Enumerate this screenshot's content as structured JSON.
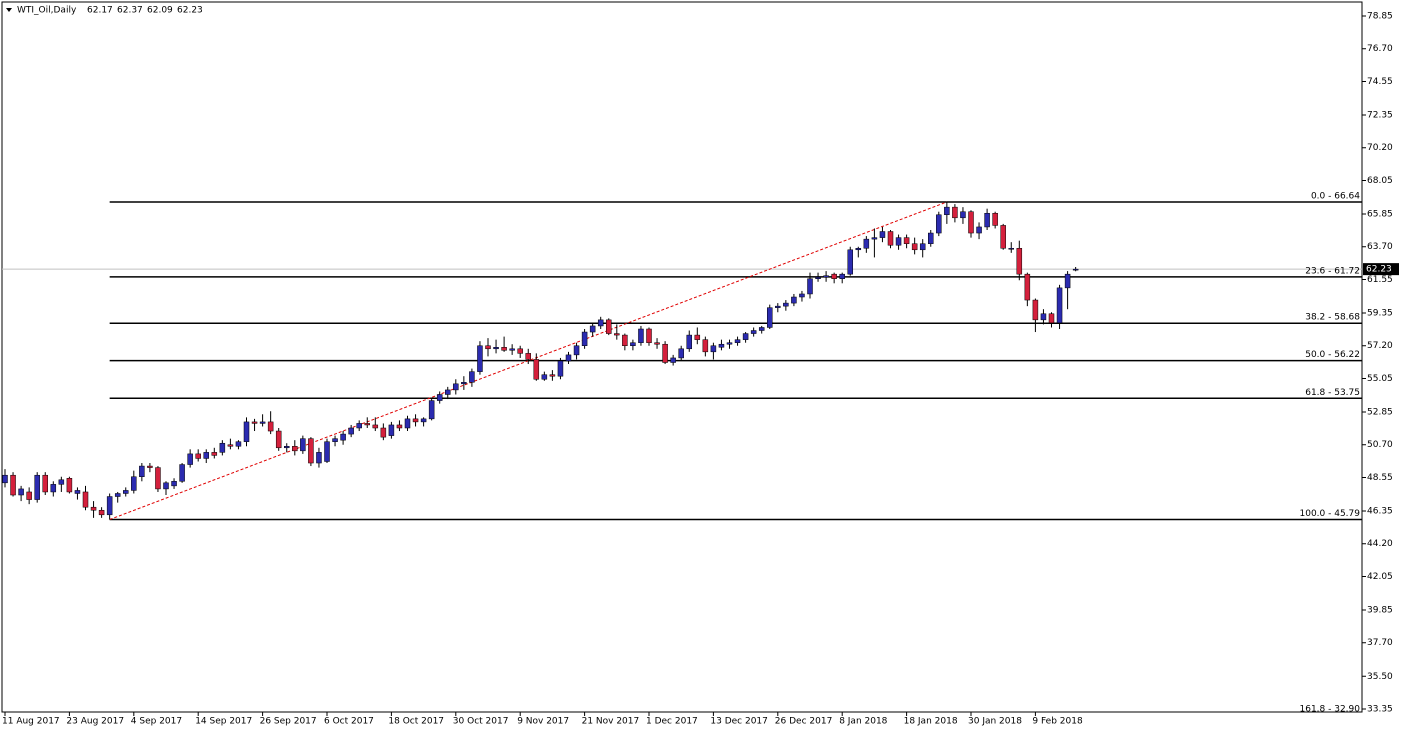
{
  "chart_data": {
    "type": "candlestick",
    "title": "WTI_Oil,Daily",
    "up_color": "#2b2bb0",
    "down_color": "#d4203c",
    "wick_color": "#000000",
    "trendline_color": "#e00000",
    "fib_color": "#000000",
    "ylim": [
      33.35,
      78.85
    ],
    "yticks": [
      78.85,
      {
        "value": 76.7,
        "label": "76.70"
      },
      74.55,
      72.35,
      {
        "value": 70.2,
        "label": "70.20"
      },
      68.05,
      65.85,
      {
        "value": 63.7,
        "label": "63.70"
      },
      61.55,
      59.35,
      {
        "value": 57.2,
        "label": "57.20"
      },
      55.05,
      52.85,
      {
        "value": 50.7,
        "label": "50.70"
      },
      48.55,
      46.35,
      {
        "value": 44.2,
        "label": "44.20"
      },
      42.05,
      39.85,
      {
        "value": 37.7,
        "label": "37.70"
      },
      {
        "value": 35.5,
        "label": "35.50"
      },
      33.35
    ],
    "fib_levels": [
      {
        "value": 66.64,
        "label": "0.0 - 66.64"
      },
      {
        "value": 61.72,
        "label": "23.6 - 61.72"
      },
      {
        "value": 58.68,
        "label": "38.2 - 58.68"
      },
      {
        "value": 56.22,
        "label": "50.0 - 56.22"
      },
      {
        "value": 53.75,
        "label": "61.8 - 53.75"
      },
      {
        "value": 45.79,
        "label": "100.0 - 45.79"
      },
      {
        "value": 32.9,
        "label": "161.8 - 32.90"
      }
    ],
    "categories": [
      "11 Aug 2017",
      null,
      null,
      null,
      null,
      null,
      null,
      null,
      "23 Aug 2017",
      null,
      null,
      null,
      null,
      null,
      null,
      null,
      "4 Sep 2017",
      null,
      null,
      null,
      null,
      null,
      null,
      null,
      "14 Sep 2017",
      null,
      null,
      null,
      null,
      null,
      null,
      null,
      "26 Sep 2017",
      null,
      null,
      null,
      null,
      null,
      null,
      null,
      "6 Oct 2017",
      null,
      null,
      null,
      null,
      null,
      null,
      null,
      "18 Oct 2017",
      null,
      null,
      null,
      null,
      null,
      null,
      null,
      "30 Oct 2017",
      null,
      null,
      null,
      null,
      null,
      null,
      null,
      "9 Nov 2017",
      null,
      null,
      null,
      null,
      null,
      null,
      null,
      "21 Nov 2017",
      null,
      null,
      null,
      null,
      null,
      null,
      null,
      "1 Dec 2017",
      null,
      null,
      null,
      null,
      null,
      null,
      null,
      "13 Dec 2017",
      null,
      null,
      null,
      null,
      null,
      null,
      null,
      "26 Dec 2017",
      null,
      null,
      null,
      null,
      null,
      null,
      null,
      "8 Jan 2018",
      null,
      null,
      null,
      null,
      null,
      null,
      null,
      "18 Jan 2018",
      null,
      null,
      null,
      null,
      null,
      null,
      null,
      "30 Jan 2018",
      null,
      null,
      null,
      null,
      null,
      null,
      null,
      "9 Feb 2018",
      null,
      null,
      null,
      null,
      null
    ],
    "open": [
      48.2,
      48.7,
      47.4,
      47.6,
      47.1,
      48.7,
      47.6,
      48.1,
      48.5,
      47.5,
      47.6,
      46.6,
      46.4,
      46.1,
      47.3,
      47.5,
      47.7,
      48.6,
      49.3,
      49.2,
      47.8,
      48.0,
      48.3,
      49.4,
      50.1,
      49.8,
      50.2,
      50.2,
      50.7,
      50.6,
      50.9,
      52.2,
      52.1,
      52.2,
      51.6,
      50.5,
      50.6,
      50.3,
      51.1,
      49.5,
      49.6,
      50.9,
      51.0,
      51.4,
      51.8,
      52.1,
      52.0,
      51.8,
      51.3,
      52.0,
      51.8,
      52.4,
      52.2,
      52.4,
      53.6,
      54.0,
      54.3,
      54.7,
      54.8,
      55.5,
      57.2,
      57.0,
      57.1,
      56.9,
      57.0,
      56.7,
      56.3,
      55.0,
      55.3,
      55.2,
      56.2,
      56.6,
      57.2,
      58.1,
      58.5,
      58.9,
      58.0,
      57.9,
      57.2,
      57.4,
      58.3,
      57.4,
      57.3,
      56.1,
      56.4,
      57.0,
      57.9,
      57.6,
      56.8,
      57.1,
      57.3,
      57.4,
      57.6,
      58.0,
      58.2,
      58.4,
      59.7,
      59.8,
      60.0,
      60.4,
      60.6,
      61.6,
      61.7,
      61.9,
      61.6,
      61.9,
      63.5,
      63.6,
      64.2,
      64.3,
      64.7,
      63.8,
      64.3,
      63.9,
      63.5,
      63.9,
      64.6,
      65.8,
      66.3,
      65.6,
      66.0,
      64.6,
      65.0,
      65.9,
      65.1,
      63.6,
      63.6,
      61.9,
      60.2,
      58.9,
      59.3,
      58.7,
      61.0,
      62.17
    ],
    "high": [
      49.1,
      48.9,
      48.0,
      47.9,
      48.9,
      48.9,
      48.3,
      48.6,
      48.6,
      47.9,
      48.0,
      47.0,
      46.6,
      47.5,
      47.6,
      47.9,
      49.0,
      49.5,
      49.5,
      49.3,
      48.3,
      48.5,
      49.5,
      50.4,
      50.4,
      50.4,
      50.5,
      51.0,
      51.1,
      51.0,
      52.5,
      52.4,
      52.7,
      52.9,
      51.8,
      50.8,
      51.0,
      51.3,
      51.2,
      50.5,
      51.1,
      51.3,
      51.6,
      52.0,
      52.3,
      52.5,
      52.5,
      52.1,
      52.2,
      52.3,
      52.6,
      52.7,
      52.5,
      53.8,
      54.2,
      54.5,
      55.0,
      55.2,
      55.7,
      57.5,
      57.7,
      57.6,
      57.8,
      57.3,
      57.2,
      57.0,
      56.7,
      55.5,
      55.6,
      56.4,
      56.8,
      57.4,
      58.3,
      58.7,
      59.1,
      59.0,
      58.6,
      58.0,
      57.6,
      58.5,
      58.4,
      57.7,
      57.5,
      56.6,
      57.2,
      58.2,
      58.4,
      57.8,
      57.4,
      57.6,
      57.6,
      57.8,
      58.1,
      58.4,
      58.5,
      59.9,
      60.0,
      60.2,
      60.6,
      60.8,
      62.0,
      62.0,
      62.1,
      62.0,
      62.0,
      63.7,
      63.7,
      64.4,
      64.9,
      65.0,
      64.8,
      64.5,
      64.5,
      64.3,
      64.2,
      64.8,
      66.0,
      66.64,
      66.5,
      66.3,
      66.1,
      65.3,
      66.2,
      66.0,
      65.2,
      64.0,
      64.1,
      62.0,
      60.3,
      59.6,
      59.4,
      61.2,
      62.1,
      62.37
    ],
    "low": [
      47.9,
      47.3,
      47.0,
      46.8,
      46.9,
      47.4,
      47.3,
      47.6,
      47.5,
      47.1,
      46.4,
      45.9,
      45.9,
      45.79,
      46.9,
      47.3,
      47.5,
      48.3,
      48.9,
      47.6,
      47.4,
      47.8,
      48.2,
      49.2,
      49.6,
      49.5,
      49.8,
      50.0,
      50.4,
      50.4,
      50.6,
      51.6,
      51.9,
      51.4,
      50.3,
      50.2,
      50.0,
      50.1,
      49.3,
      49.2,
      49.5,
      50.6,
      50.7,
      51.2,
      51.6,
      51.8,
      51.6,
      51.0,
      51.1,
      51.6,
      51.6,
      51.9,
      51.9,
      52.3,
      53.4,
      53.7,
      54.0,
      54.3,
      54.5,
      55.3,
      56.5,
      56.7,
      56.8,
      56.6,
      56.4,
      56.0,
      54.9,
      54.9,
      54.9,
      55.0,
      56.0,
      56.3,
      57.0,
      57.8,
      58.3,
      57.9,
      57.6,
      56.9,
      56.9,
      57.2,
      57.2,
      57.0,
      56.0,
      55.9,
      56.2,
      56.8,
      57.3,
      56.5,
      56.3,
      56.9,
      57.0,
      57.2,
      57.4,
      57.8,
      58.0,
      58.3,
      59.4,
      59.5,
      59.8,
      60.1,
      60.3,
      61.4,
      61.4,
      61.3,
      61.3,
      61.8,
      63.0,
      63.3,
      63.0,
      64.0,
      63.6,
      63.5,
      63.6,
      63.2,
      63.0,
      63.7,
      64.4,
      65.2,
      65.3,
      65.2,
      64.3,
      64.2,
      64.8,
      64.9,
      63.5,
      63.3,
      61.5,
      59.8,
      58.1,
      58.6,
      58.4,
      58.3,
      59.6,
      62.09
    ],
    "close": [
      48.7,
      47.4,
      47.8,
      47.1,
      48.7,
      47.6,
      48.1,
      48.4,
      47.6,
      47.7,
      46.6,
      46.4,
      46.1,
      47.3,
      47.5,
      47.7,
      48.6,
      49.3,
      49.2,
      47.8,
      48.2,
      48.3,
      49.4,
      50.1,
      49.8,
      50.2,
      50.0,
      50.8,
      50.6,
      50.9,
      52.2,
      52.1,
      52.2,
      51.6,
      50.5,
      50.6,
      50.3,
      51.1,
      49.5,
      50.2,
      50.9,
      51.1,
      51.4,
      51.8,
      52.1,
      52.0,
      51.8,
      51.2,
      52.0,
      51.8,
      52.4,
      52.2,
      52.4,
      53.6,
      54.0,
      54.3,
      54.7,
      54.8,
      55.5,
      57.2,
      57.0,
      57.1,
      56.9,
      57.0,
      56.7,
      56.3,
      55.0,
      55.3,
      55.2,
      56.2,
      56.6,
      57.2,
      58.1,
      58.5,
      58.9,
      58.0,
      57.9,
      57.2,
      57.4,
      58.3,
      57.4,
      57.3,
      56.1,
      56.4,
      57.0,
      57.9,
      57.6,
      56.8,
      57.2,
      57.3,
      57.4,
      57.6,
      58.0,
      58.2,
      58.4,
      59.7,
      59.8,
      60.0,
      60.4,
      60.6,
      61.6,
      61.7,
      61.8,
      61.6,
      61.9,
      63.5,
      63.6,
      64.2,
      64.3,
      64.7,
      63.8,
      64.3,
      63.9,
      63.5,
      63.9,
      64.6,
      65.8,
      66.3,
      65.6,
      66.0,
      64.6,
      65.0,
      65.9,
      65.1,
      63.6,
      63.6,
      61.9,
      60.2,
      58.9,
      59.3,
      58.7,
      61.0,
      61.9,
      62.23
    ]
  }
}
